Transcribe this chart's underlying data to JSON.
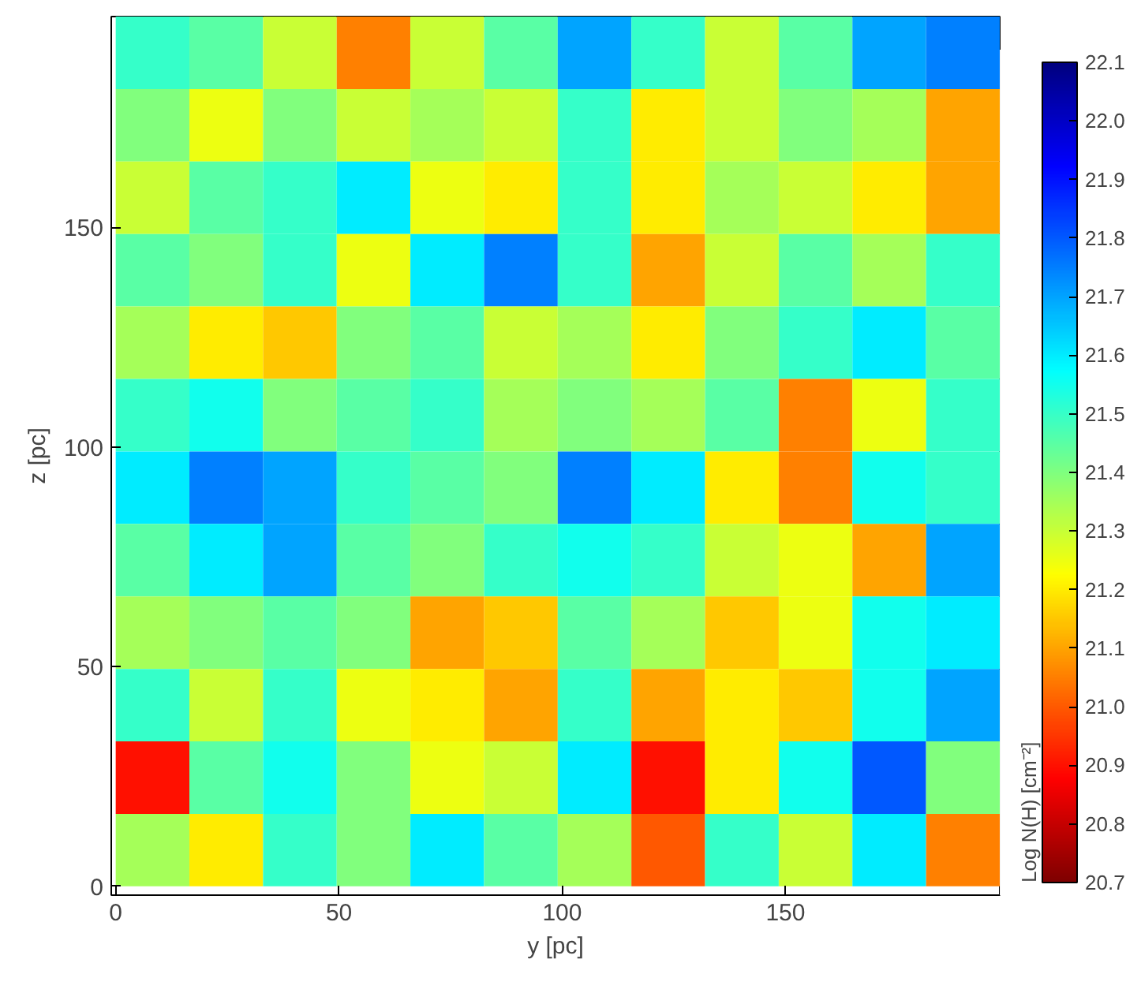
{
  "chart_data": {
    "type": "heatmap",
    "xlabel": "y [pc]",
    "ylabel": "z [pc]",
    "clabel": "Log N(H) [cm⁻²]",
    "x": [
      8.25,
      24.75,
      41.25,
      57.75,
      74.25,
      90.75,
      107.25,
      123.75,
      140.25,
      156.75,
      173.25,
      189.75
    ],
    "y": [
      189.75,
      173.25,
      156.75,
      140.25,
      123.75,
      107.25,
      90.75,
      74.25,
      57.75,
      41.25,
      24.75,
      8.25
    ],
    "xlim": [
      -1,
      198
    ],
    "ylim": [
      -2,
      198
    ],
    "xticks": [
      0,
      50,
      100,
      150
    ],
    "yticks": [
      0,
      50,
      100,
      150
    ],
    "cells": [
      [
        21.5,
        21.45,
        21.3,
        21.05,
        21.3,
        21.45,
        21.7,
        21.5,
        21.3,
        21.45,
        21.7,
        21.75
      ],
      [
        21.4,
        21.25,
        21.4,
        21.3,
        21.35,
        21.3,
        21.5,
        21.2,
        21.3,
        21.4,
        21.35,
        21.1
      ],
      [
        21.3,
        21.45,
        21.5,
        21.6,
        21.25,
        21.2,
        21.5,
        21.2,
        21.35,
        21.3,
        21.2,
        21.1
      ],
      [
        21.45,
        21.4,
        21.5,
        21.25,
        21.6,
        21.75,
        21.5,
        21.1,
        21.3,
        21.45,
        21.35,
        21.5
      ],
      [
        21.35,
        21.2,
        21.15,
        21.4,
        21.45,
        21.3,
        21.35,
        21.2,
        21.4,
        21.5,
        21.6,
        21.45
      ],
      [
        21.5,
        21.55,
        21.4,
        21.45,
        21.5,
        21.35,
        21.4,
        21.35,
        21.45,
        21.05,
        21.25,
        21.5
      ],
      [
        21.6,
        21.75,
        21.7,
        21.5,
        21.45,
        21.4,
        21.75,
        21.6,
        21.2,
        21.05,
        21.55,
        21.5
      ],
      [
        21.45,
        21.6,
        21.7,
        21.45,
        21.4,
        21.5,
        21.55,
        21.5,
        21.3,
        21.25,
        21.1,
        21.7
      ],
      [
        21.35,
        21.4,
        21.45,
        21.4,
        21.1,
        21.15,
        21.45,
        21.35,
        21.15,
        21.25,
        21.55,
        21.6
      ],
      [
        21.5,
        21.3,
        21.5,
        21.25,
        21.2,
        21.1,
        21.5,
        21.1,
        21.2,
        21.15,
        21.55,
        21.7
      ],
      [
        20.9,
        21.45,
        21.55,
        21.4,
        21.25,
        21.3,
        21.6,
        20.9,
        21.2,
        21.55,
        21.8,
        21.4
      ],
      [
        21.35,
        21.2,
        21.5,
        21.4,
        21.6,
        21.45,
        21.35,
        21.0,
        21.5,
        21.3,
        21.6,
        21.05
      ]
    ],
    "clim": [
      20.7,
      22.1
    ],
    "cticks": [
      20.7,
      20.8,
      20.9,
      {
        "value": 21.0,
        "label": "21.0"
      },
      21.1,
      21.2,
      21.3,
      21.4,
      21.5,
      21.6,
      21.7,
      21.8,
      21.9,
      {
        "value": 22.0,
        "label": "22.0"
      },
      22.1
    ]
  }
}
